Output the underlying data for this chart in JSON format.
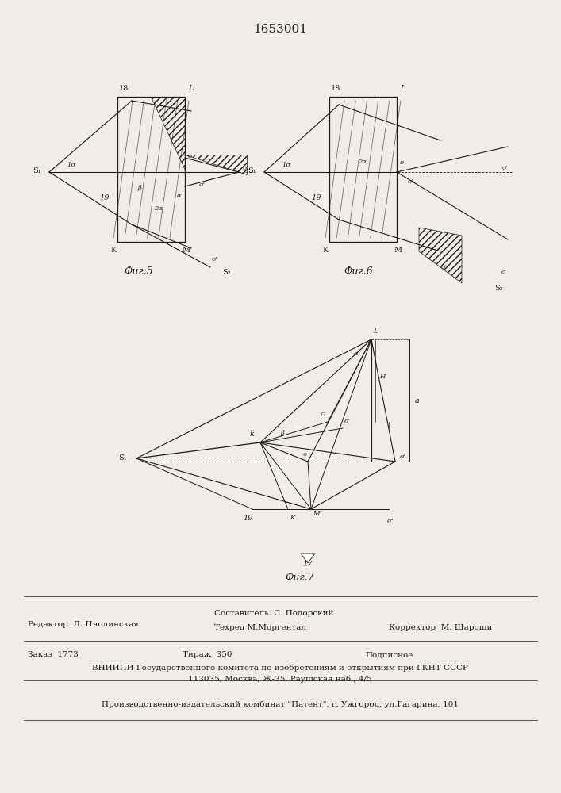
{
  "title": "1653001",
  "bg_color": "#f0ede8",
  "fig5_caption": "Фиг.5",
  "fig6_caption": "Фиг.6",
  "fig7_caption": "Фиг.7",
  "footer_line1_left": "Редактор  Л. Пчолинская",
  "footer_line1_mid1": "Составитель  С. Подорский",
  "footer_line1_mid2": "Техред М.Моргентал",
  "footer_line1_right": "Корректор  М. Шароши",
  "footer_line2_left": "Заказ  1773",
  "footer_line2_mid": "Тираж  350",
  "footer_line2_right": "Подписное",
  "footer_line3": "ВНИИПИ Государственного комитета по изобретениям и открытиям при ГКНТ СССР",
  "footer_line4": "113035, Москва, Ж-35, Раушская наб., 4/5",
  "footer_line5": "Производственно-издательский комбинат \"Патент\", г. Ужгород, ул.Гагарина, 101",
  "label_1sigma": "1σ",
  "label_sigma_prime": "σ'",
  "label_2alpha": "2α",
  "label_alpha": "α",
  "label_beta": "β",
  "label_S1": "S₁",
  "label_S2": "S₂",
  "label_o_prime": "o'",
  "label_o_dbl": "o\"",
  "label_G": "G",
  "label_L": "L",
  "label_K": "K",
  "label_M": "M",
  "label_o": "o",
  "label_H": "H",
  "label_a": "a",
  "label_18": "18",
  "label_19": "19",
  "label_17": "17"
}
